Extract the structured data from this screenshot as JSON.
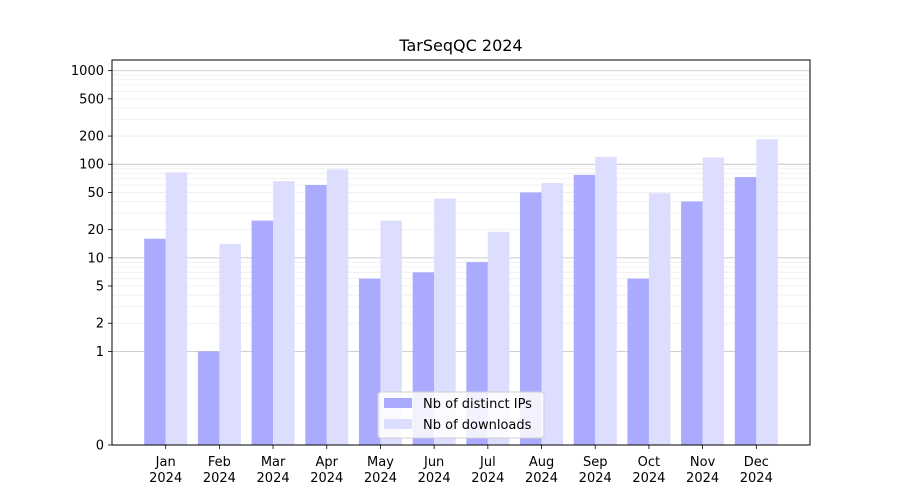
{
  "chart_data": {
    "type": "bar",
    "title": "TarSeqQC 2024",
    "xlabel": "",
    "ylabel": "",
    "yscale": "symlog",
    "ylim": [
      0,
      1300
    ],
    "yticks": [
      "0",
      "1",
      "2",
      "5",
      "10",
      "20",
      "50",
      "100",
      "200",
      "500",
      "1000"
    ],
    "categories": [
      [
        "Jan",
        "2024"
      ],
      [
        "Feb",
        "2024"
      ],
      [
        "Mar",
        "2024"
      ],
      [
        "Apr",
        "2024"
      ],
      [
        "May",
        "2024"
      ],
      [
        "Jun",
        "2024"
      ],
      [
        "Jul",
        "2024"
      ],
      [
        "Aug",
        "2024"
      ],
      [
        "Sep",
        "2024"
      ],
      [
        "Oct",
        "2024"
      ],
      [
        "Nov",
        "2024"
      ],
      [
        "Dec",
        "2024"
      ]
    ],
    "series": [
      {
        "name": "Nb of distinct IPs",
        "color": "#aaaaff",
        "values": [
          16,
          1,
          25,
          60,
          6,
          7,
          9,
          50,
          77,
          6,
          40,
          73
        ]
      },
      {
        "name": "Nb of downloads",
        "color": "#ddddff",
        "values": [
          82,
          14,
          66,
          88,
          25,
          43,
          19,
          63,
          120,
          49,
          118,
          185
        ]
      }
    ],
    "grid": true,
    "legend": "bottom-center"
  }
}
